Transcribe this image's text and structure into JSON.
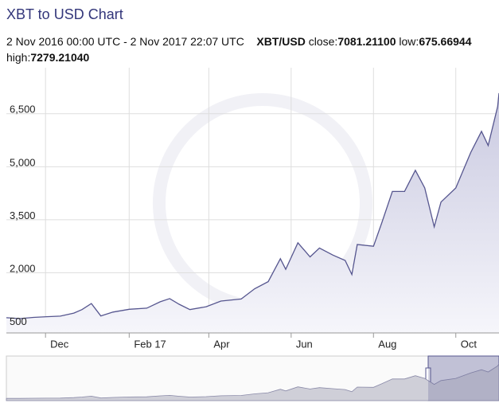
{
  "header": {
    "title": "XBT to USD Chart",
    "date_range": "2 Nov 2016 00:00 UTC - 2 Nov 2017 22:07 UTC",
    "pair": "XBT/USD",
    "close_label": "close:",
    "close": "7081.21100",
    "low_label": "low:",
    "low": "675.66944",
    "high_label": "high:",
    "high": "7279.21040"
  },
  "chart_data": {
    "type": "area",
    "x": [
      "2016-11-02",
      "2016-11-12",
      "2016-11-22",
      "2016-12-02",
      "2016-12-12",
      "2016-12-22",
      "2016-12-28",
      "2017-01-04",
      "2017-01-11",
      "2017-01-20",
      "2017-02-01",
      "2017-02-14",
      "2017-02-24",
      "2017-03-03",
      "2017-03-10",
      "2017-03-18",
      "2017-03-30",
      "2017-04-10",
      "2017-04-25",
      "2017-05-05",
      "2017-05-15",
      "2017-05-24",
      "2017-05-28",
      "2017-06-06",
      "2017-06-15",
      "2017-06-22",
      "2017-07-02",
      "2017-07-11",
      "2017-07-16",
      "2017-07-20",
      "2017-08-01",
      "2017-08-07",
      "2017-08-15",
      "2017-08-24",
      "2017-09-01",
      "2017-09-08",
      "2017-09-15",
      "2017-09-20",
      "2017-10-01",
      "2017-10-12",
      "2017-10-20",
      "2017-10-25",
      "2017-11-01",
      "2017-11-02"
    ],
    "series": [
      {
        "color": "#56568f",
        "values": [
          730,
          705,
          740,
          760,
          775,
          860,
          960,
          1130,
          780,
          890,
          970,
          1000,
          1180,
          1270,
          1110,
          960,
          1040,
          1200,
          1260,
          1550,
          1750,
          2400,
          2100,
          2850,
          2450,
          2700,
          2500,
          2350,
          1950,
          2800,
          2750,
          3400,
          4300,
          4300,
          4900,
          4400,
          3300,
          4000,
          4400,
          5400,
          6000,
          5600,
          6700,
          7081
        ]
      }
    ],
    "xlim": [
      "2016-11-02",
      "2017-11-02"
    ],
    "xticks": [
      {
        "value": "2016-12-01",
        "label": "Dec"
      },
      {
        "value": "2017-02-01",
        "label": "Feb 17"
      },
      {
        "value": "2017-04-01",
        "label": "Apr"
      },
      {
        "value": "2017-06-01",
        "label": "Jun"
      },
      {
        "value": "2017-08-01",
        "label": "Aug"
      },
      {
        "value": "2017-10-01",
        "label": "Oct"
      }
    ],
    "ylim": [
      300,
      7800
    ],
    "yticks": [
      500,
      {
        "value": 2000,
        "label": "2,000"
      },
      {
        "value": 3500,
        "label": "3,500"
      },
      {
        "value": 5000,
        "label": "5,000"
      },
      {
        "value": 6500,
        "label": "6,500"
      }
    ],
    "grid": true
  }
}
